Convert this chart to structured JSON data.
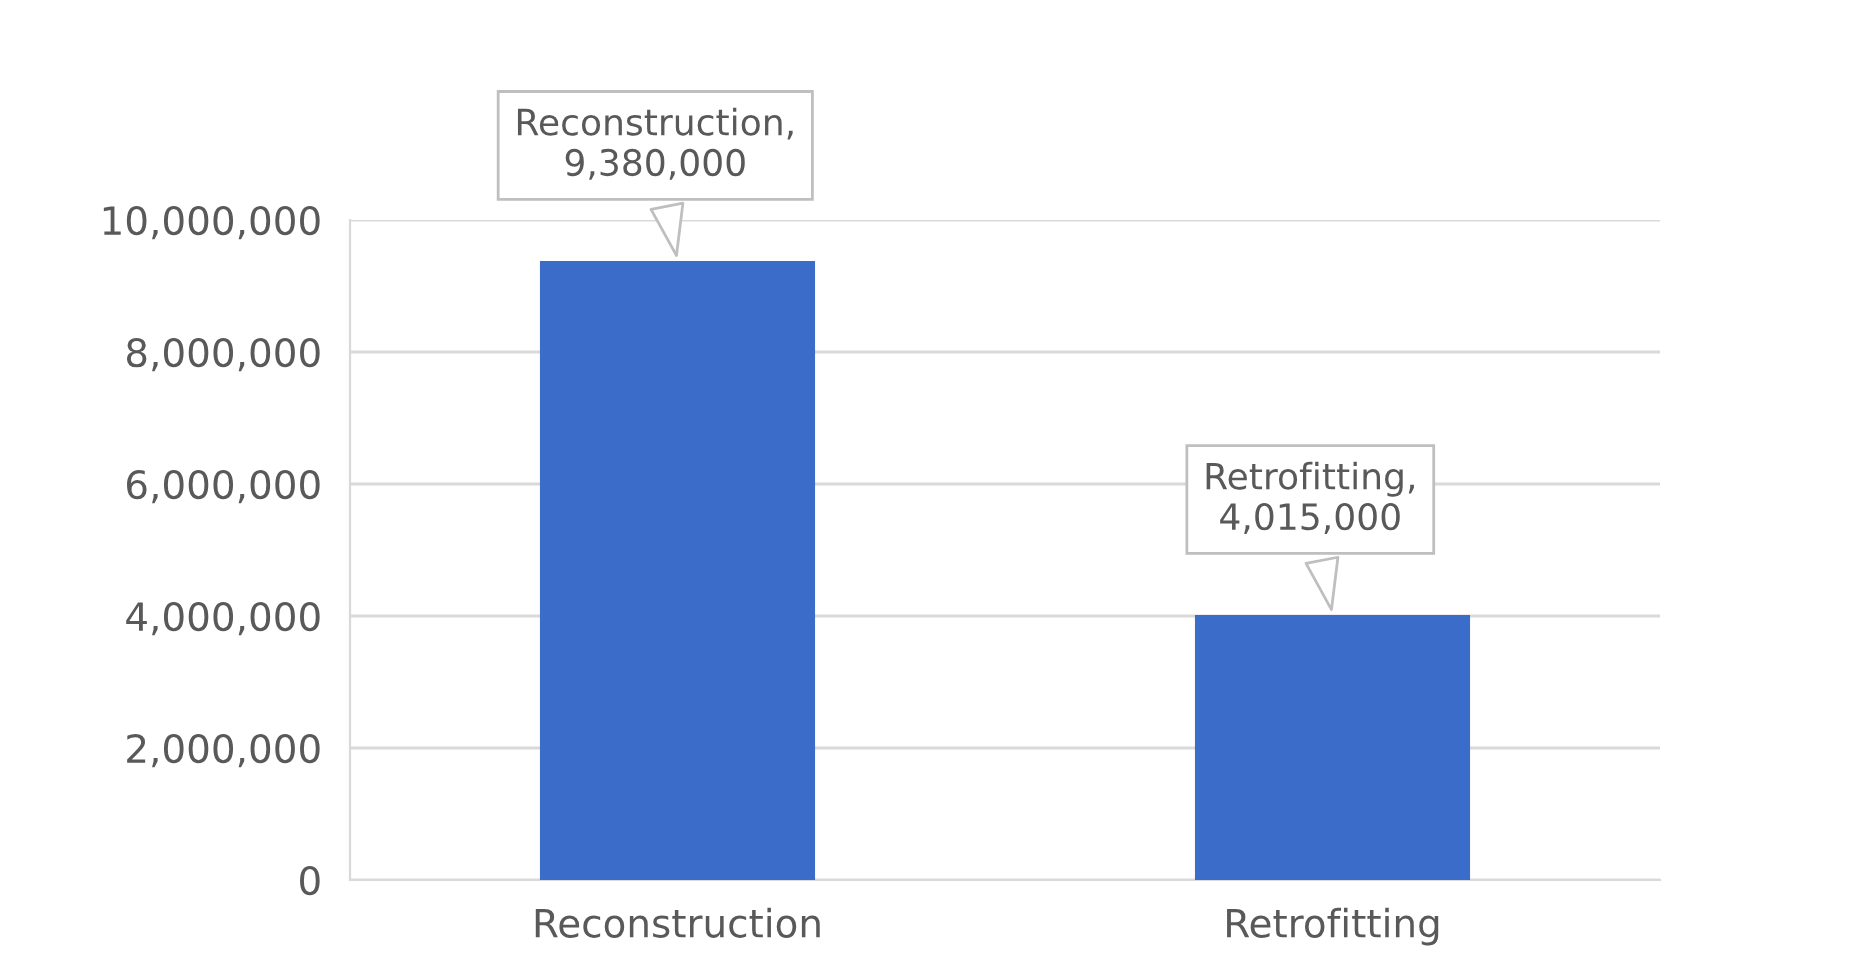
{
  "chart_data": {
    "type": "bar",
    "categories": [
      "Reconstruction",
      "Retrofitting"
    ],
    "values": [
      9380000,
      4015000
    ],
    "color": "#3c6cc9",
    "value_labels": [
      "Reconstruction, 9,380,000",
      "Retrofitting, 4,015,000"
    ],
    "ylim": [
      0,
      10000000
    ],
    "yticks": [
      0,
      {
        "value": 2000000,
        "label": "2,000,000"
      },
      {
        "value": 4000000,
        "label": "4,000,000"
      },
      {
        "value": 6000000,
        "label": "6,000,000"
      },
      {
        "value": 8000000,
        "label": "8,000,000"
      },
      {
        "value": 10000000,
        "label": "10,000,000"
      }
    ],
    "grid": "y"
  }
}
